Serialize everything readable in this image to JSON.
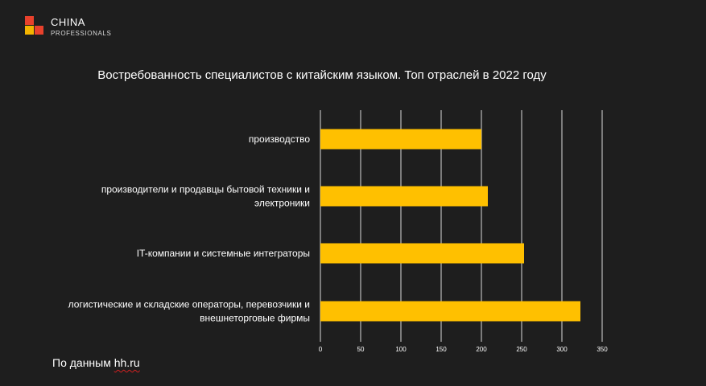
{
  "logo": {
    "line1": "CHINA",
    "line2": "PROFESSIONALS",
    "colors": [
      "#e8412c",
      "#f4b400"
    ]
  },
  "chart_data": {
    "type": "bar",
    "orientation": "horizontal",
    "title": "Востребованность специалистов с китайским языком. Топ отраслей в 2022 году",
    "categories": [
      "производство",
      "производители и продавцы бытовой техники и электроники",
      "IT-компании и системные интеграторы",
      "логистические и складские операторы, перевозчики и внешнеторговые фирмы"
    ],
    "category_lines": [
      [
        "производство"
      ],
      [
        "производители и продавцы бытовой техники и",
        "электроники"
      ],
      [
        "IT-компании и системные интеграторы"
      ],
      [
        "логистические и складские операторы, перевозчики и",
        "внешнеторговые фирмы"
      ]
    ],
    "values": [
      200,
      208,
      253,
      323
    ],
    "xlim": [
      0,
      350
    ],
    "xticks": [
      0,
      50,
      100,
      150,
      200,
      250,
      300,
      350
    ],
    "grid": true,
    "bar_color": "#ffc000",
    "grid_color": "#d9d9d9"
  },
  "source": {
    "prefix": "По данным",
    "link": "hh.ru"
  }
}
